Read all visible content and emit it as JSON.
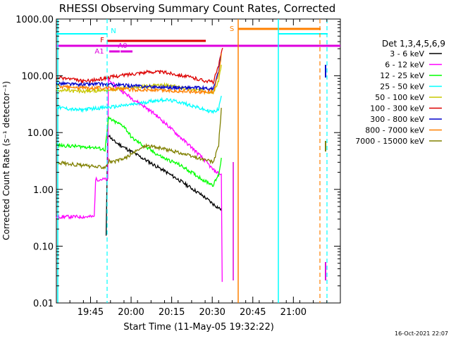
{
  "chart_data": {
    "type": "line",
    "title": "RHESSI Observing Summary Count Rates, Corrected",
    "xlabel": "Start Time (11-May-05 19:32:22)",
    "ylabel": "Corrected Count Rate (s⁻¹ detector⁻¹)",
    "yscale": "log",
    "ylim": [
      0.01,
      1000
    ],
    "xlim_minutes": [
      0,
      105
    ],
    "x_tick_labels": [
      "19:45",
      "20:00",
      "20:15",
      "20:30",
      "20:45",
      "21:00"
    ],
    "x_tick_minutes": [
      12.63,
      27.63,
      42.63,
      57.63,
      72.63,
      87.63
    ],
    "y_tick_labels": [
      "0.01",
      "0.10",
      "1.00",
      "10.00",
      "100.00",
      "1000.00"
    ],
    "y_tick_values": [
      0.01,
      0.1,
      1,
      10,
      100,
      1000
    ],
    "legend_title": "Det 1,3,4,5,6,9",
    "legend_position": "right",
    "timestamp": "16-Oct-2021 22:07",
    "series": [
      {
        "name": "3 - 6 keV",
        "color": "#000000",
        "points": [
          [
            18.4,
            0.15
          ],
          [
            19.0,
            9.5
          ],
          [
            21,
            7.2
          ],
          [
            25,
            5.5
          ],
          [
            30,
            4.0
          ],
          [
            35,
            2.9
          ],
          [
            40,
            2.1
          ],
          [
            45,
            1.5
          ],
          [
            50,
            1.05
          ],
          [
            55,
            0.72
          ],
          [
            58,
            0.55
          ],
          [
            61,
            0.44
          ]
        ]
      },
      {
        "name": "6 - 12 keV",
        "color": "#ff00ff",
        "points": [
          [
            0,
            0.33
          ],
          [
            14,
            0.33
          ],
          [
            14.5,
            1.5
          ],
          [
            19.0,
            1.5
          ],
          [
            19.2,
            90
          ],
          [
            20,
            78
          ],
          [
            24,
            55
          ],
          [
            28,
            40
          ],
          [
            32,
            30
          ],
          [
            36,
            22
          ],
          [
            40,
            15
          ],
          [
            45,
            9
          ],
          [
            50,
            5.5
          ],
          [
            55,
            3.2
          ],
          [
            58,
            2.2
          ],
          [
            61,
            1.8
          ],
          [
            61.3,
            0.025
          ]
        ]
      },
      {
        "name": "12 - 25 keV",
        "color": "#00ff00",
        "points": [
          [
            0,
            6
          ],
          [
            14,
            5.5
          ],
          [
            18,
            5
          ],
          [
            19.3,
            18
          ],
          [
            21,
            16
          ],
          [
            25,
            13
          ],
          [
            28,
            8
          ],
          [
            32,
            6
          ],
          [
            36,
            4.5
          ],
          [
            40,
            3.5
          ],
          [
            45,
            2.8
          ],
          [
            50,
            2.0
          ],
          [
            55,
            1.4
          ],
          [
            58,
            1.2
          ],
          [
            60,
            1.8
          ],
          [
            61,
            3.5
          ]
        ]
      },
      {
        "name": "25 - 50 keV",
        "color": "#00ffff",
        "points": [
          [
            0,
            28
          ],
          [
            8,
            25
          ],
          [
            15,
            27
          ],
          [
            20,
            28
          ],
          [
            25,
            30
          ],
          [
            30,
            32
          ],
          [
            35,
            36
          ],
          [
            40,
            38
          ],
          [
            45,
            35
          ],
          [
            50,
            30
          ],
          [
            55,
            25
          ],
          [
            58,
            23
          ],
          [
            60,
            26
          ],
          [
            61,
            45
          ]
        ]
      },
      {
        "name": "50 - 100 keV",
        "color": "#c8c800",
        "points": [
          [
            0,
            57
          ],
          [
            8,
            53
          ],
          [
            15,
            55
          ],
          [
            20,
            57
          ],
          [
            25,
            60
          ],
          [
            30,
            63
          ],
          [
            35,
            67
          ],
          [
            40,
            68
          ],
          [
            45,
            64
          ],
          [
            50,
            58
          ],
          [
            55,
            54
          ],
          [
            58,
            51
          ],
          [
            60,
            80
          ],
          [
            61,
            160
          ]
        ]
      },
      {
        "name": "100 - 300 keV",
        "color": "#dd0000",
        "points": [
          [
            0,
            95
          ],
          [
            5,
            88
          ],
          [
            10,
            80
          ],
          [
            15,
            85
          ],
          [
            20,
            95
          ],
          [
            25,
            103
          ],
          [
            30,
            112
          ],
          [
            35,
            118
          ],
          [
            40,
            115
          ],
          [
            45,
            105
          ],
          [
            50,
            93
          ],
          [
            55,
            82
          ],
          [
            58,
            78
          ],
          [
            60,
            150
          ],
          [
            61.5,
            320
          ]
        ]
      },
      {
        "name": "300 - 800 keV",
        "color": "#0000cc",
        "points": [
          [
            0,
            75
          ],
          [
            8,
            70
          ],
          [
            15,
            72
          ],
          [
            20,
            70
          ],
          [
            25,
            68
          ],
          [
            30,
            66
          ],
          [
            35,
            64
          ],
          [
            40,
            63
          ],
          [
            45,
            62
          ],
          [
            50,
            62
          ],
          [
            55,
            60
          ],
          [
            58,
            58
          ],
          [
            60,
            120
          ],
          [
            61,
            250
          ]
        ]
      },
      {
        "name": "800 - 7000 keV",
        "color": "#ff8000",
        "points": [
          [
            0,
            65
          ],
          [
            8,
            61
          ],
          [
            15,
            62
          ],
          [
            20,
            60
          ],
          [
            25,
            58
          ],
          [
            30,
            57
          ],
          [
            35,
            56
          ],
          [
            40,
            55
          ],
          [
            45,
            54
          ],
          [
            50,
            53
          ],
          [
            55,
            52
          ],
          [
            58,
            52
          ],
          [
            60,
            110
          ],
          [
            61,
            230
          ]
        ]
      },
      {
        "name": "7000 - 15000 keV",
        "color": "#808000",
        "points": [
          [
            0,
            3
          ],
          [
            14,
            2.5
          ],
          [
            18,
            2.5
          ],
          [
            19.5,
            3.2
          ],
          [
            21,
            3.0
          ],
          [
            25,
            3.5
          ],
          [
            29,
            4.5
          ],
          [
            33,
            6.0
          ],
          [
            37,
            5.5
          ],
          [
            41,
            5.0
          ],
          [
            45,
            4.5
          ],
          [
            50,
            3.8
          ],
          [
            55,
            3.3
          ],
          [
            58,
            3.0
          ],
          [
            60,
            6
          ],
          [
            61,
            28
          ]
        ]
      }
    ],
    "flags": [
      {
        "label": "N",
        "color": "#00ffff"
      },
      {
        "label": "F",
        "color": "#dd0000"
      },
      {
        "label": "A1",
        "color": "#dd00dd"
      },
      {
        "label": "A0",
        "color": "#dd00dd"
      },
      {
        "label": "S",
        "color": "#ff8000"
      }
    ]
  }
}
